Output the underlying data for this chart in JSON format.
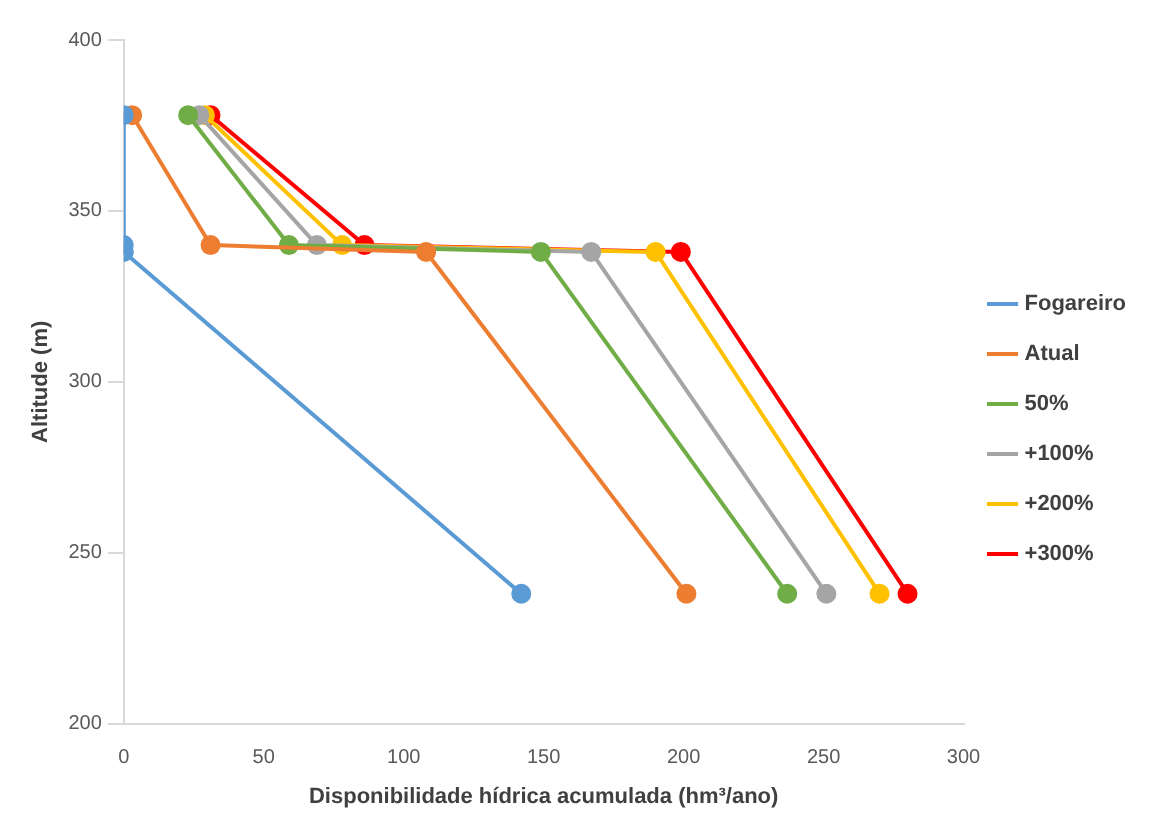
{
  "chart_data": {
    "type": "line",
    "xlabel": "Disponibilidade hídrica acumulada (hm³/ano)",
    "ylabel": "Altitude (m)",
    "xlim": [
      0,
      300
    ],
    "xticks": [
      0,
      50,
      100,
      150,
      200,
      250,
      300
    ],
    "ylim": [
      200,
      400
    ],
    "yticks": [
      200,
      250,
      300,
      350,
      400
    ],
    "grid": false,
    "legend": "right",
    "marker": "circle",
    "series": [
      {
        "name": "Fogareiro",
        "color": "#5b9bd5",
        "x": [
          0,
          0,
          0,
          142
        ],
        "values": [
          378,
          340,
          338,
          238
        ]
      },
      {
        "name": "Atual",
        "color": "#ed7d31",
        "x": [
          3,
          31,
          108,
          201
        ],
        "values": [
          378,
          340,
          338,
          238
        ]
      },
      {
        "name": "50%",
        "color": "#70ad47",
        "x": [
          23,
          59,
          149,
          237
        ],
        "values": [
          378,
          340,
          338,
          238
        ]
      },
      {
        "name": "+100%",
        "color": "#a5a5a5",
        "x": [
          27,
          69,
          167,
          251
        ],
        "values": [
          378,
          340,
          338,
          238
        ]
      },
      {
        "name": "+200%",
        "color": "#ffc000",
        "x": [
          29,
          78,
          190,
          270
        ],
        "values": [
          378,
          340,
          338,
          238
        ]
      },
      {
        "name": "+300%",
        "color": "#ff0000",
        "x": [
          31,
          86,
          199,
          280
        ],
        "values": [
          378,
          340,
          338,
          238
        ]
      }
    ]
  }
}
